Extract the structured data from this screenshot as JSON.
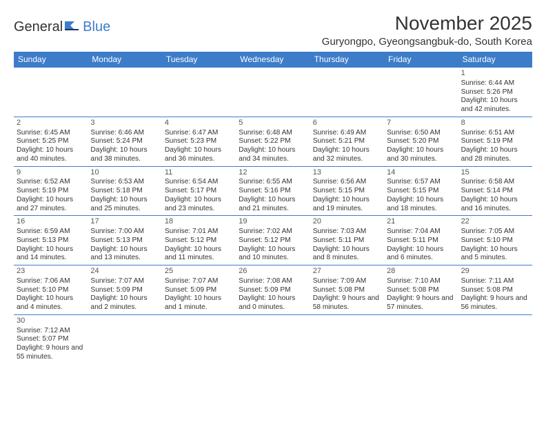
{
  "brand": {
    "general": "General",
    "blue": "Blue"
  },
  "title": "November 2025",
  "location": "Guryongpo, Gyeongsangbuk-do, South Korea",
  "colors": {
    "header_bg": "#3d7cc9",
    "header_text": "#ffffff",
    "text": "#333333",
    "line": "#3d7cc9",
    "background": "#ffffff"
  },
  "typography": {
    "title_fontsize_pt": 21,
    "location_fontsize_pt": 11,
    "dow_fontsize_pt": 9,
    "body_fontsize_pt": 7.5,
    "font_family": "Arial"
  },
  "dow": [
    "Sunday",
    "Monday",
    "Tuesday",
    "Wednesday",
    "Thursday",
    "Friday",
    "Saturday"
  ],
  "weeks": [
    [
      null,
      null,
      null,
      null,
      null,
      null,
      {
        "n": "1",
        "sr": "Sunrise: 6:44 AM",
        "ss": "Sunset: 5:26 PM",
        "dl": "Daylight: 10 hours and 42 minutes."
      }
    ],
    [
      {
        "n": "2",
        "sr": "Sunrise: 6:45 AM",
        "ss": "Sunset: 5:25 PM",
        "dl": "Daylight: 10 hours and 40 minutes."
      },
      {
        "n": "3",
        "sr": "Sunrise: 6:46 AM",
        "ss": "Sunset: 5:24 PM",
        "dl": "Daylight: 10 hours and 38 minutes."
      },
      {
        "n": "4",
        "sr": "Sunrise: 6:47 AM",
        "ss": "Sunset: 5:23 PM",
        "dl": "Daylight: 10 hours and 36 minutes."
      },
      {
        "n": "5",
        "sr": "Sunrise: 6:48 AM",
        "ss": "Sunset: 5:22 PM",
        "dl": "Daylight: 10 hours and 34 minutes."
      },
      {
        "n": "6",
        "sr": "Sunrise: 6:49 AM",
        "ss": "Sunset: 5:21 PM",
        "dl": "Daylight: 10 hours and 32 minutes."
      },
      {
        "n": "7",
        "sr": "Sunrise: 6:50 AM",
        "ss": "Sunset: 5:20 PM",
        "dl": "Daylight: 10 hours and 30 minutes."
      },
      {
        "n": "8",
        "sr": "Sunrise: 6:51 AM",
        "ss": "Sunset: 5:19 PM",
        "dl": "Daylight: 10 hours and 28 minutes."
      }
    ],
    [
      {
        "n": "9",
        "sr": "Sunrise: 6:52 AM",
        "ss": "Sunset: 5:19 PM",
        "dl": "Daylight: 10 hours and 27 minutes."
      },
      {
        "n": "10",
        "sr": "Sunrise: 6:53 AM",
        "ss": "Sunset: 5:18 PM",
        "dl": "Daylight: 10 hours and 25 minutes."
      },
      {
        "n": "11",
        "sr": "Sunrise: 6:54 AM",
        "ss": "Sunset: 5:17 PM",
        "dl": "Daylight: 10 hours and 23 minutes."
      },
      {
        "n": "12",
        "sr": "Sunrise: 6:55 AM",
        "ss": "Sunset: 5:16 PM",
        "dl": "Daylight: 10 hours and 21 minutes."
      },
      {
        "n": "13",
        "sr": "Sunrise: 6:56 AM",
        "ss": "Sunset: 5:15 PM",
        "dl": "Daylight: 10 hours and 19 minutes."
      },
      {
        "n": "14",
        "sr": "Sunrise: 6:57 AM",
        "ss": "Sunset: 5:15 PM",
        "dl": "Daylight: 10 hours and 18 minutes."
      },
      {
        "n": "15",
        "sr": "Sunrise: 6:58 AM",
        "ss": "Sunset: 5:14 PM",
        "dl": "Daylight: 10 hours and 16 minutes."
      }
    ],
    [
      {
        "n": "16",
        "sr": "Sunrise: 6:59 AM",
        "ss": "Sunset: 5:13 PM",
        "dl": "Daylight: 10 hours and 14 minutes."
      },
      {
        "n": "17",
        "sr": "Sunrise: 7:00 AM",
        "ss": "Sunset: 5:13 PM",
        "dl": "Daylight: 10 hours and 13 minutes."
      },
      {
        "n": "18",
        "sr": "Sunrise: 7:01 AM",
        "ss": "Sunset: 5:12 PM",
        "dl": "Daylight: 10 hours and 11 minutes."
      },
      {
        "n": "19",
        "sr": "Sunrise: 7:02 AM",
        "ss": "Sunset: 5:12 PM",
        "dl": "Daylight: 10 hours and 10 minutes."
      },
      {
        "n": "20",
        "sr": "Sunrise: 7:03 AM",
        "ss": "Sunset: 5:11 PM",
        "dl": "Daylight: 10 hours and 8 minutes."
      },
      {
        "n": "21",
        "sr": "Sunrise: 7:04 AM",
        "ss": "Sunset: 5:11 PM",
        "dl": "Daylight: 10 hours and 6 minutes."
      },
      {
        "n": "22",
        "sr": "Sunrise: 7:05 AM",
        "ss": "Sunset: 5:10 PM",
        "dl": "Daylight: 10 hours and 5 minutes."
      }
    ],
    [
      {
        "n": "23",
        "sr": "Sunrise: 7:06 AM",
        "ss": "Sunset: 5:10 PM",
        "dl": "Daylight: 10 hours and 4 minutes."
      },
      {
        "n": "24",
        "sr": "Sunrise: 7:07 AM",
        "ss": "Sunset: 5:09 PM",
        "dl": "Daylight: 10 hours and 2 minutes."
      },
      {
        "n": "25",
        "sr": "Sunrise: 7:07 AM",
        "ss": "Sunset: 5:09 PM",
        "dl": "Daylight: 10 hours and 1 minute."
      },
      {
        "n": "26",
        "sr": "Sunrise: 7:08 AM",
        "ss": "Sunset: 5:09 PM",
        "dl": "Daylight: 10 hours and 0 minutes."
      },
      {
        "n": "27",
        "sr": "Sunrise: 7:09 AM",
        "ss": "Sunset: 5:08 PM",
        "dl": "Daylight: 9 hours and 58 minutes."
      },
      {
        "n": "28",
        "sr": "Sunrise: 7:10 AM",
        "ss": "Sunset: 5:08 PM",
        "dl": "Daylight: 9 hours and 57 minutes."
      },
      {
        "n": "29",
        "sr": "Sunrise: 7:11 AM",
        "ss": "Sunset: 5:08 PM",
        "dl": "Daylight: 9 hours and 56 minutes."
      }
    ],
    [
      {
        "n": "30",
        "sr": "Sunrise: 7:12 AM",
        "ss": "Sunset: 5:07 PM",
        "dl": "Daylight: 9 hours and 55 minutes."
      },
      null,
      null,
      null,
      null,
      null,
      null
    ]
  ]
}
